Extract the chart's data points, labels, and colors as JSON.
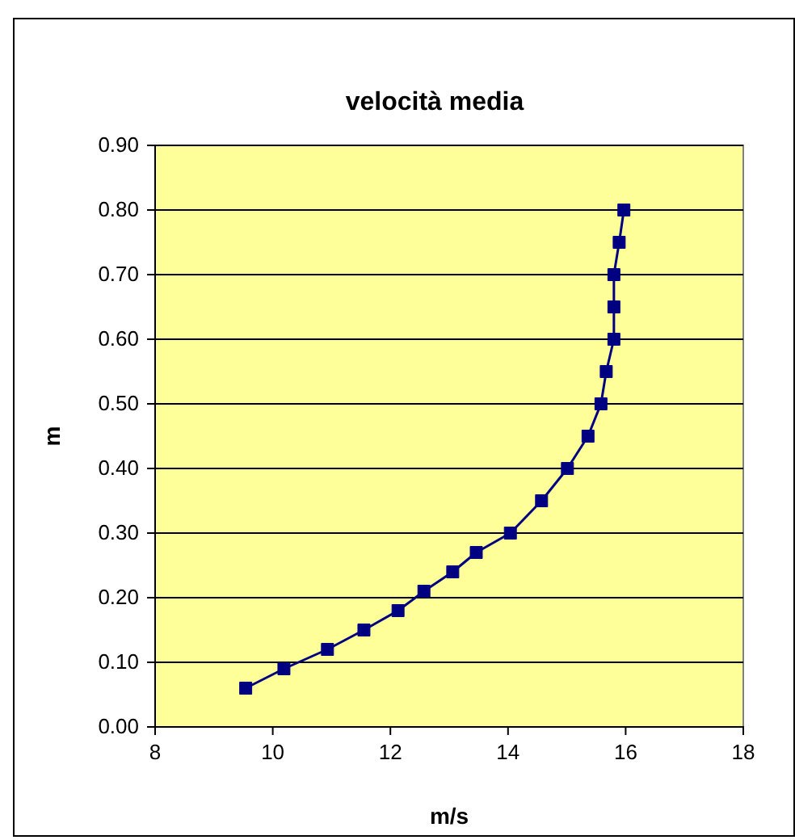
{
  "chart_data": {
    "type": "line",
    "title": "velocità media",
    "xlabel": "m/s",
    "ylabel": "m",
    "x": [
      9.54,
      10.19,
      10.93,
      11.55,
      12.13,
      12.57,
      13.06,
      13.46,
      14.04,
      14.57,
      15.01,
      15.36,
      15.58,
      15.67,
      15.8,
      15.8,
      15.8,
      15.89,
      15.97
    ],
    "series": [
      {
        "color": "#000080",
        "values": [
          0.06,
          0.09,
          0.12,
          0.15,
          0.18,
          0.21,
          0.24,
          0.27,
          0.3,
          0.35,
          0.4,
          0.45,
          0.5,
          0.55,
          0.6,
          0.65,
          0.7,
          0.75,
          0.8
        ]
      }
    ],
    "xlim": [
      8,
      18
    ],
    "xticks": [
      8,
      10,
      12,
      14,
      16,
      18
    ],
    "ylim": [
      0,
      0.9
    ],
    "yticks": [
      {
        "value": 0,
        "label": "0.00"
      },
      {
        "value": 0.1,
        "label": "0.10"
      },
      {
        "value": 0.2,
        "label": "0.20"
      },
      {
        "value": 0.3,
        "label": "0.30"
      },
      {
        "value": 0.4,
        "label": "0.40"
      },
      {
        "value": 0.5,
        "label": "0.50"
      },
      {
        "value": 0.6,
        "label": "0.60"
      },
      {
        "value": 0.7,
        "label": "0.70"
      },
      {
        "value": 0.8,
        "label": "0.80"
      },
      {
        "value": 0.9,
        "label": "0.90"
      }
    ],
    "grid": "y",
    "marker": "square",
    "line_style": "solid"
  }
}
